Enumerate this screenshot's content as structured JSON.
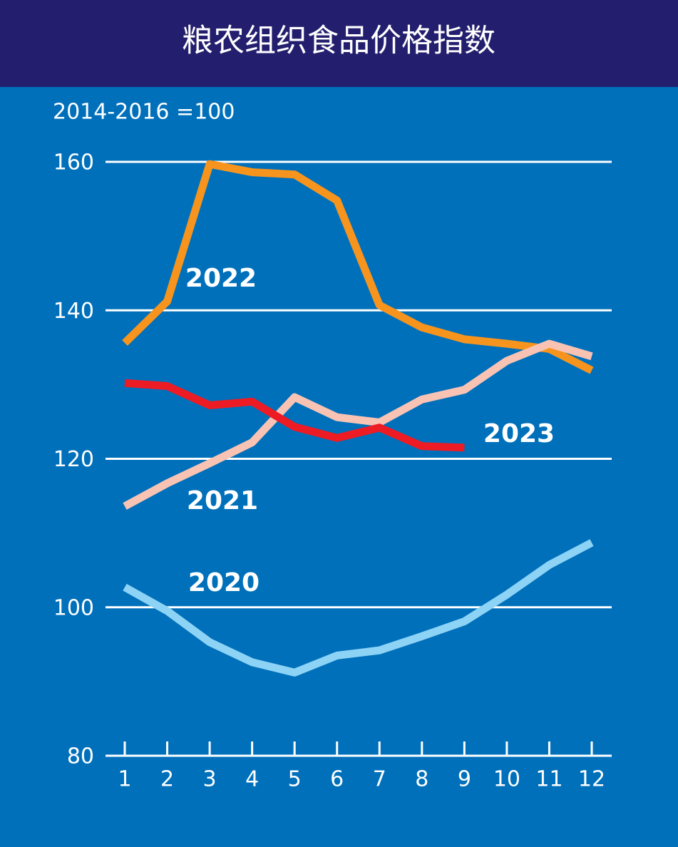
{
  "chart_data": {
    "type": "line",
    "title": "粮农组织食品价格指数",
    "subtitle": "2014-2016 =100",
    "x": [
      1,
      2,
      3,
      4,
      5,
      6,
      7,
      8,
      9,
      10,
      11,
      12
    ],
    "xlim": [
      1,
      12
    ],
    "xticks": [
      1,
      2,
      3,
      4,
      5,
      6,
      7,
      8,
      9,
      10,
      11,
      12
    ],
    "ylim": [
      80,
      160
    ],
    "yticks": [
      80,
      100,
      120,
      140,
      160
    ],
    "grid": true,
    "series": [
      {
        "name": "2022",
        "color": "#f7941d",
        "values": [
          135.6,
          141.2,
          159.7,
          158.6,
          158.3,
          154.8,
          140.7,
          137.7,
          136.1,
          135.5,
          134.8,
          131.9
        ]
      },
      {
        "name": "2021",
        "color": "#f9c3b4",
        "values": [
          113.6,
          116.7,
          119.4,
          122.2,
          128.3,
          125.6,
          124.9,
          128.0,
          129.3,
          133.2,
          135.5,
          133.8
        ]
      },
      {
        "name": "2023",
        "color": "#ed1c24",
        "values": [
          130.2,
          129.8,
          127.2,
          127.7,
          124.3,
          122.8,
          124.2,
          121.7,
          121.5,
          null,
          null,
          null
        ]
      },
      {
        "name": "2020",
        "color": "#8dd3f5",
        "values": [
          102.7,
          99.5,
          95.3,
          92.6,
          91.2,
          93.5,
          94.2,
          96.1,
          98.1,
          101.7,
          105.7,
          108.7
        ]
      }
    ]
  }
}
